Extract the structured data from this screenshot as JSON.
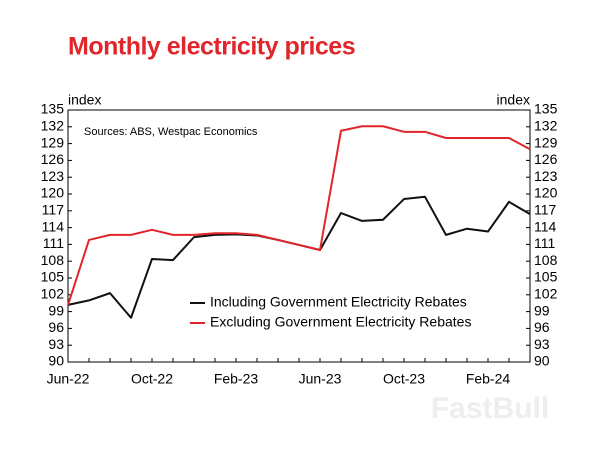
{
  "chart_data": {
    "type": "line",
    "title": "Monthly electricity prices",
    "y_label": "index",
    "y2_label": "index",
    "source": "Sources: ABS, Westpac Economics",
    "watermark": "FastBull",
    "categories": [
      "Jun-22",
      null,
      null,
      null,
      "Oct-22",
      null,
      null,
      null,
      "Feb-23",
      null,
      null,
      null,
      "Jun-23",
      null,
      null,
      null,
      "Oct-23",
      null,
      null,
      null,
      "Feb-24",
      null,
      null
    ],
    "series": [
      {
        "name": "Including Government Electricity Rebates",
        "color": "#111111",
        "values": [
          100.2,
          101,
          102.3,
          97.9,
          108.4,
          108.2,
          112.3,
          112.7,
          112.8,
          112.6,
          111.8,
          110.9,
          110,
          116.6,
          115.2,
          115.4,
          119.1,
          119.5,
          112.7,
          113.8,
          113.3,
          118.6,
          116.4
        ]
      },
      {
        "name": "Excluding Government Electricity Rebates",
        "color": "#e0262b",
        "values": [
          100.2,
          111.8,
          112.7,
          112.7,
          113.6,
          112.7,
          112.7,
          113,
          113,
          112.7,
          111.8,
          110.9,
          110,
          131.3,
          132.1,
          132.1,
          131.1,
          131.1,
          130,
          130,
          130,
          130,
          128
        ]
      }
    ],
    "ylim": [
      90,
      135
    ],
    "yticks": [
      90,
      93,
      96,
      99,
      102,
      105,
      108,
      111,
      114,
      117,
      120,
      123,
      126,
      129,
      132,
      135
    ],
    "y2lim": [
      90,
      135
    ],
    "y2ticks": [
      90,
      93,
      96,
      99,
      102,
      105,
      108,
      111,
      114,
      117,
      120,
      123,
      126,
      129,
      132,
      135
    ]
  }
}
